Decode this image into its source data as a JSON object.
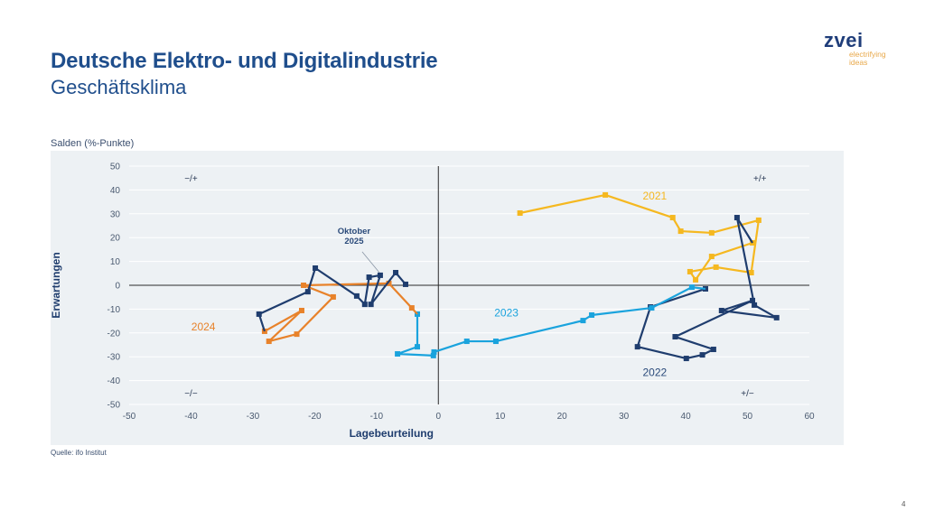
{
  "header": {
    "title": "Deutsche Elektro- und Digitalindustrie",
    "subtitle": "Geschäftsklima"
  },
  "logo": {
    "word": "zvei",
    "tagline_1": "electrifying",
    "tagline_2": "ideas"
  },
  "footer": {
    "source": "Quelle: ifo Institut",
    "page_number": "4"
  },
  "chart_data": {
    "type": "scatter",
    "title": "Geschäftsklima",
    "unit_label": "Salden (%-Punkte)",
    "xlabel": "Lagebeurteilung",
    "ylabel": "Erwartungen",
    "xlim": [
      -50,
      60
    ],
    "ylim": [
      -50,
      50
    ],
    "xticks": [
      -50,
      -40,
      -30,
      -20,
      -10,
      0,
      10,
      20,
      30,
      40,
      50,
      60
    ],
    "yticks": [
      -50,
      -40,
      -30,
      -20,
      -10,
      0,
      10,
      20,
      30,
      40,
      50
    ],
    "grid": "horizontal",
    "quadrant_labels": [
      {
        "text": "−/+",
        "position": "top-left"
      },
      {
        "text": "+/+",
        "position": "top-right"
      },
      {
        "text": "−/−",
        "position": "bottom-left"
      },
      {
        "text": "+/−",
        "position": "bottom-right"
      }
    ],
    "annotation": {
      "text_1": "Oktober",
      "text_2": "2025",
      "x": -9.4,
      "y": 4.2
    },
    "series": [
      {
        "name": "2021",
        "color": "#f5b820",
        "label_at": [
          35,
          36
        ],
        "points": [
          [
            13.2,
            30.3
          ],
          [
            27.0,
            37.9
          ],
          [
            37.9,
            28.4
          ],
          [
            39.2,
            22.7
          ],
          [
            44.2,
            22.0
          ],
          [
            51.8,
            27.3
          ],
          [
            50.6,
            5.3
          ],
          [
            44.9,
            7.6
          ],
          [
            40.7,
            5.7
          ],
          [
            41.6,
            2.3
          ],
          [
            44.2,
            12.1
          ],
          [
            50.8,
            17.8
          ]
        ]
      },
      {
        "name": "2022",
        "color": "#1f3d6e",
        "label_at": [
          35,
          -38
        ],
        "points": [
          [
            50.8,
            17.8
          ],
          [
            48.3,
            28.4
          ],
          [
            51.1,
            -8.3
          ],
          [
            54.7,
            -13.6
          ],
          [
            45.8,
            -10.6
          ],
          [
            50.8,
            -6.4
          ],
          [
            38.3,
            -21.6
          ],
          [
            44.5,
            -26.9
          ],
          [
            42.7,
            -29.2
          ],
          [
            40.1,
            -30.7
          ],
          [
            32.2,
            -25.8
          ],
          [
            34.3,
            -9.1
          ],
          [
            43.2,
            -1.5
          ]
        ]
      },
      {
        "name": "2023",
        "color": "#1aa3dd",
        "label_at": [
          11,
          -13
        ],
        "points": [
          [
            43.2,
            -1.5
          ],
          [
            41.0,
            -0.8
          ],
          [
            34.5,
            -9.5
          ],
          [
            24.8,
            -12.5
          ],
          [
            23.4,
            -14.8
          ],
          [
            9.3,
            -23.5
          ],
          [
            4.6,
            -23.5
          ],
          [
            -0.7,
            -28.0
          ],
          [
            -0.8,
            -29.5
          ],
          [
            -6.6,
            -28.8
          ],
          [
            -3.4,
            -25.8
          ],
          [
            -3.4,
            -12.1
          ]
        ]
      },
      {
        "name": "2024",
        "color": "#e8822a",
        "label_at": [
          -38,
          -19
        ],
        "points": [
          [
            -3.4,
            -12.1
          ],
          [
            -4.3,
            -9.5
          ],
          [
            -8.0,
            0.8
          ],
          [
            -21.8,
            0.0
          ],
          [
            -17.0,
            -4.9
          ],
          [
            -22.9,
            -20.5
          ],
          [
            -27.4,
            -23.5
          ],
          [
            -22.1,
            -10.6
          ],
          [
            -28.1,
            -19.3
          ]
        ]
      },
      {
        "name": "2025",
        "color": "#1f3d6e",
        "label_at": null,
        "points": [
          [
            -28.1,
            -19.3
          ],
          [
            -29.0,
            -12.1
          ],
          [
            -21.1,
            -2.7
          ],
          [
            -19.9,
            7.2
          ],
          [
            -13.2,
            -4.5
          ],
          [
            -11.9,
            -8.0
          ],
          [
            -11.2,
            3.4
          ],
          [
            -9.4,
            4.2
          ],
          [
            -10.9,
            -8.0
          ],
          [
            -6.9,
            5.3
          ],
          [
            -5.3,
            0.4
          ]
        ]
      }
    ]
  }
}
